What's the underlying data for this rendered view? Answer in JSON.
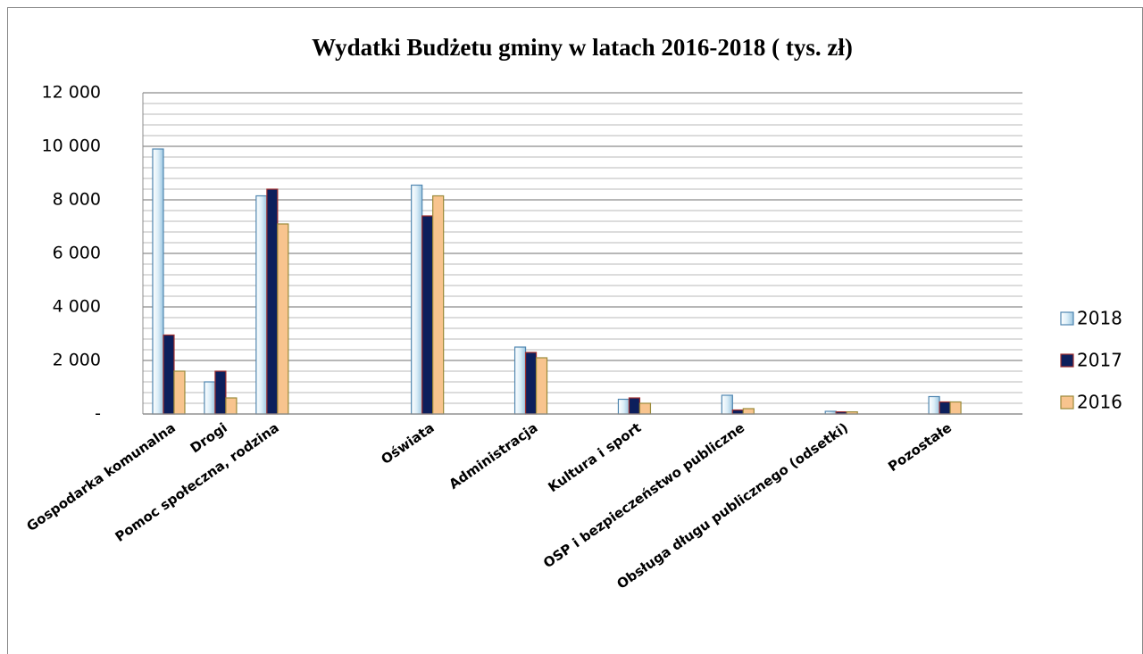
{
  "chart_data": {
    "type": "bar",
    "title": "Wydatki Budżetu gminy  w latach 2016-2018 ( tys. zł)",
    "categories": [
      "Gospodarka komunalna",
      "Drogi",
      "Pomoc społeczna, rodzina",
      null,
      null,
      "Oświata",
      null,
      "Administracja",
      null,
      "Kultura i sport",
      null,
      "OSP i bezpieczeństwo  publiczne",
      null,
      "Obsługa długu publicznego (odsetki)",
      null,
      "Pozostałe",
      null
    ],
    "series": [
      {
        "name": "2018",
        "color": "#dceef8",
        "values": [
          9900,
          1200,
          8150,
          null,
          null,
          8550,
          null,
          2500,
          null,
          550,
          null,
          700,
          null,
          100,
          null,
          650,
          null
        ]
      },
      {
        "name": "2017",
        "color": "#0d1f5c",
        "values": [
          2950,
          1600,
          8400,
          null,
          null,
          7400,
          null,
          2300,
          null,
          600,
          null,
          150,
          null,
          80,
          null,
          450,
          null
        ]
      },
      {
        "name": "2016",
        "color": "#f8c48e",
        "values": [
          1600,
          600,
          7100,
          null,
          null,
          8150,
          null,
          2100,
          null,
          400,
          null,
          200,
          null,
          80,
          null,
          450,
          null
        ]
      }
    ],
    "ylim": [
      0,
      12000
    ],
    "yticks": [
      {
        "value": 0,
        "label": "-"
      },
      {
        "value": 2000,
        "label": "2 000"
      },
      {
        "value": 4000,
        "label": "4 000"
      },
      {
        "value": 6000,
        "label": "6 000"
      },
      {
        "value": 8000,
        "label": "8 000"
      },
      {
        "value": 10000,
        "label": "10 000"
      },
      {
        "value": 12000,
        "label": "12 000"
      }
    ],
    "grid": true,
    "minor_grid_divisions": 5,
    "legend": "right"
  }
}
